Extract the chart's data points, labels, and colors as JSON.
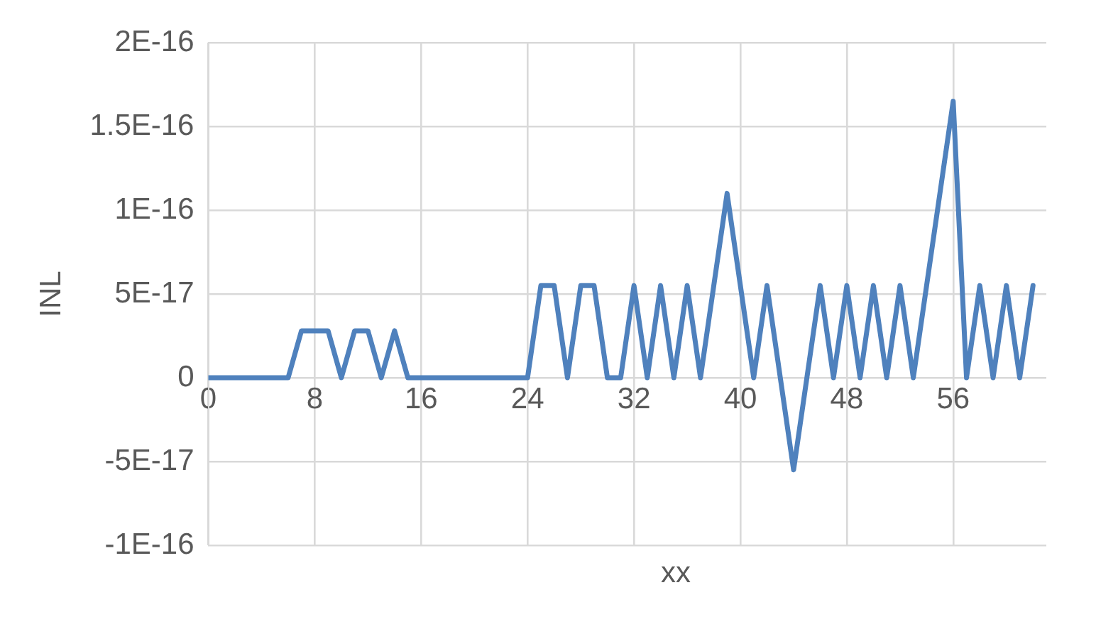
{
  "chart_data": {
    "type": "line",
    "xlabel": "xx",
    "ylabel": "INL",
    "x": [
      0,
      1,
      2,
      3,
      4,
      5,
      6,
      7,
      8,
      9,
      10,
      11,
      12,
      13,
      14,
      15,
      16,
      17,
      18,
      19,
      20,
      21,
      22,
      23,
      24,
      25,
      26,
      27,
      28,
      29,
      30,
      31,
      32,
      33,
      34,
      35,
      36,
      37,
      38,
      39,
      40,
      41,
      42,
      43,
      44,
      45,
      46,
      47,
      48,
      49,
      50,
      51,
      52,
      53,
      54,
      55,
      56,
      57,
      58,
      59,
      60,
      61,
      62
    ],
    "series": [
      {
        "color": "#4f81bd",
        "values": [
          0,
          0,
          0,
          0,
          0,
          0,
          0,
          2.8e-17,
          2.8e-17,
          2.8e-17,
          0,
          2.8e-17,
          2.8e-17,
          0,
          2.8e-17,
          0,
          0,
          0,
          0,
          0,
          0,
          0,
          0,
          0,
          0,
          5.5e-17,
          5.5e-17,
          0,
          5.5e-17,
          5.5e-17,
          0,
          0,
          5.5e-17,
          0,
          5.5e-17,
          0,
          5.5e-17,
          0,
          5.5e-17,
          1.1e-16,
          5.5e-17,
          0,
          5.5e-17,
          0,
          -5.5e-17,
          0,
          5.5e-17,
          0,
          5.5e-17,
          0,
          5.5e-17,
          0,
          5.5e-17,
          0,
          5.5e-17,
          1.1e-16,
          1.65e-16,
          0,
          5.5e-17,
          0,
          5.5e-17,
          0,
          5.5e-17
        ]
      }
    ],
    "xlim": [
      0,
      63
    ],
    "xticks": [
      0,
      8,
      16,
      24,
      32,
      40,
      48,
      56
    ],
    "ylim": [
      -1e-16,
      2e-16
    ],
    "yticks": [
      {
        "value": -1e-16,
        "label": "-1E-16"
      },
      {
        "value": -5e-17,
        "label": "-5E-17"
      },
      0,
      {
        "value": 5e-17,
        "label": "5E-17"
      },
      {
        "value": 1e-16,
        "label": "1E-16"
      },
      {
        "value": 1.5e-16,
        "label": "1.5E-16"
      },
      {
        "value": 2e-16,
        "label": "2E-16"
      }
    ],
    "grid": true,
    "legend": false,
    "marker": "none",
    "line_style": "solid"
  }
}
